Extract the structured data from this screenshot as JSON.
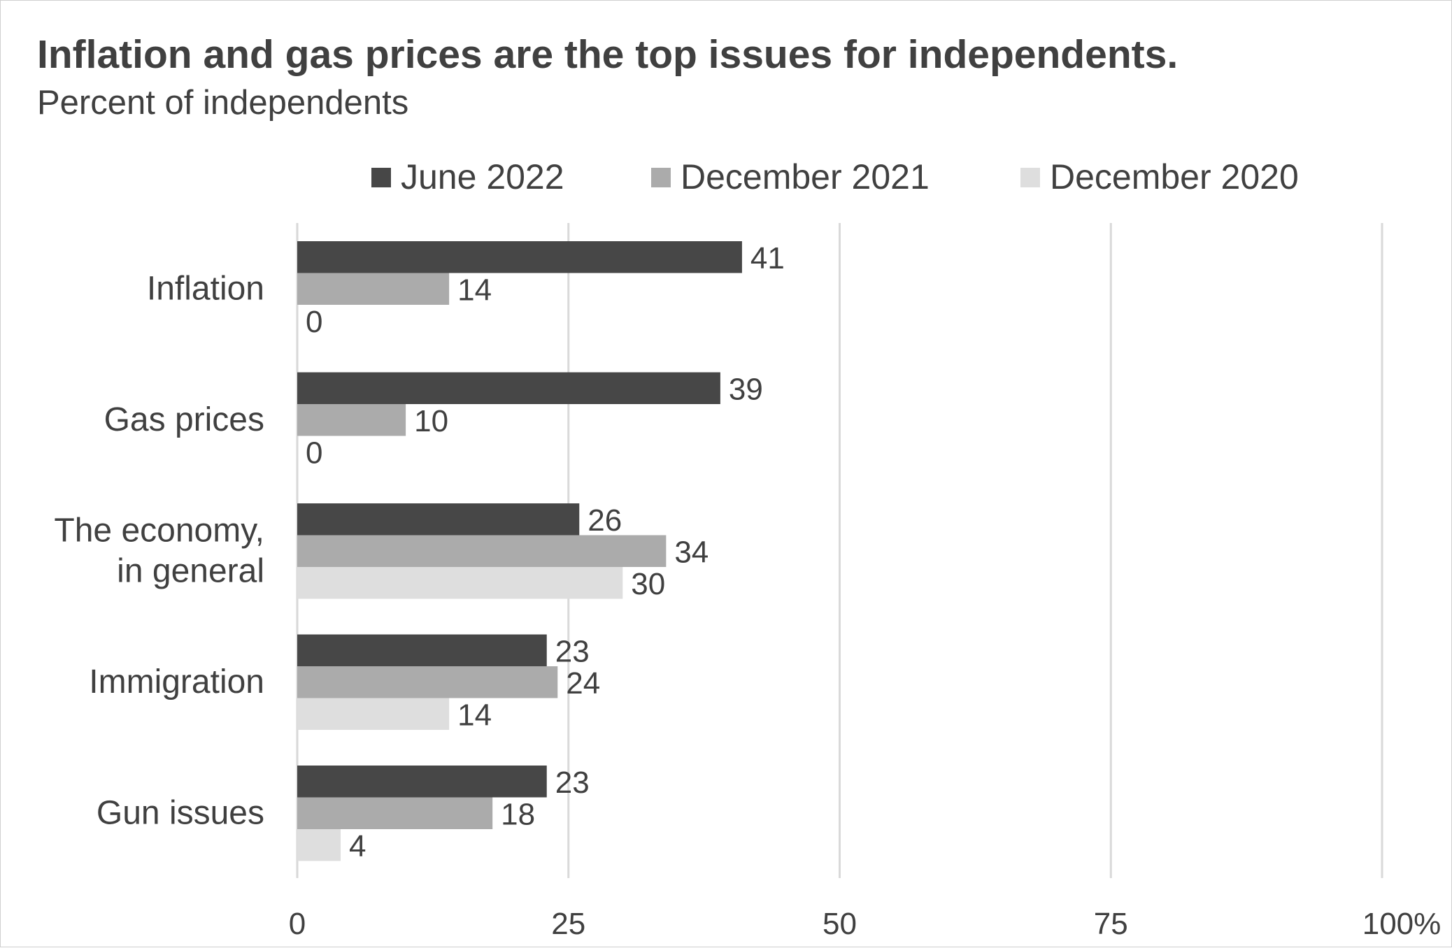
{
  "chart_data": {
    "type": "bar",
    "orientation": "horizontal",
    "title": "Inflation and gas prices are the top issues for independents.",
    "subtitle": "Percent of independents",
    "categories": [
      [
        "Inflation"
      ],
      [
        "Gas prices"
      ],
      [
        "The economy,",
        "in general"
      ],
      [
        "Immigration"
      ],
      [
        "Gun issues"
      ]
    ],
    "series": [
      {
        "name": "June 2022",
        "color": "#474747",
        "values": [
          41,
          39,
          26,
          23,
          23
        ]
      },
      {
        "name": "December 2021",
        "color": "#ababab",
        "values": [
          14,
          10,
          34,
          24,
          18
        ]
      },
      {
        "name": "December 2020",
        "color": "#dedede",
        "values": [
          0,
          0,
          30,
          14,
          4
        ]
      }
    ],
    "xlim": [
      0,
      100
    ],
    "x_ticks": [
      "0",
      "25",
      "50",
      "75",
      "100%"
    ],
    "x_tick_values": [
      0,
      25,
      50,
      75,
      100
    ],
    "grid": true,
    "legend_position": "top",
    "data_labels": true
  }
}
